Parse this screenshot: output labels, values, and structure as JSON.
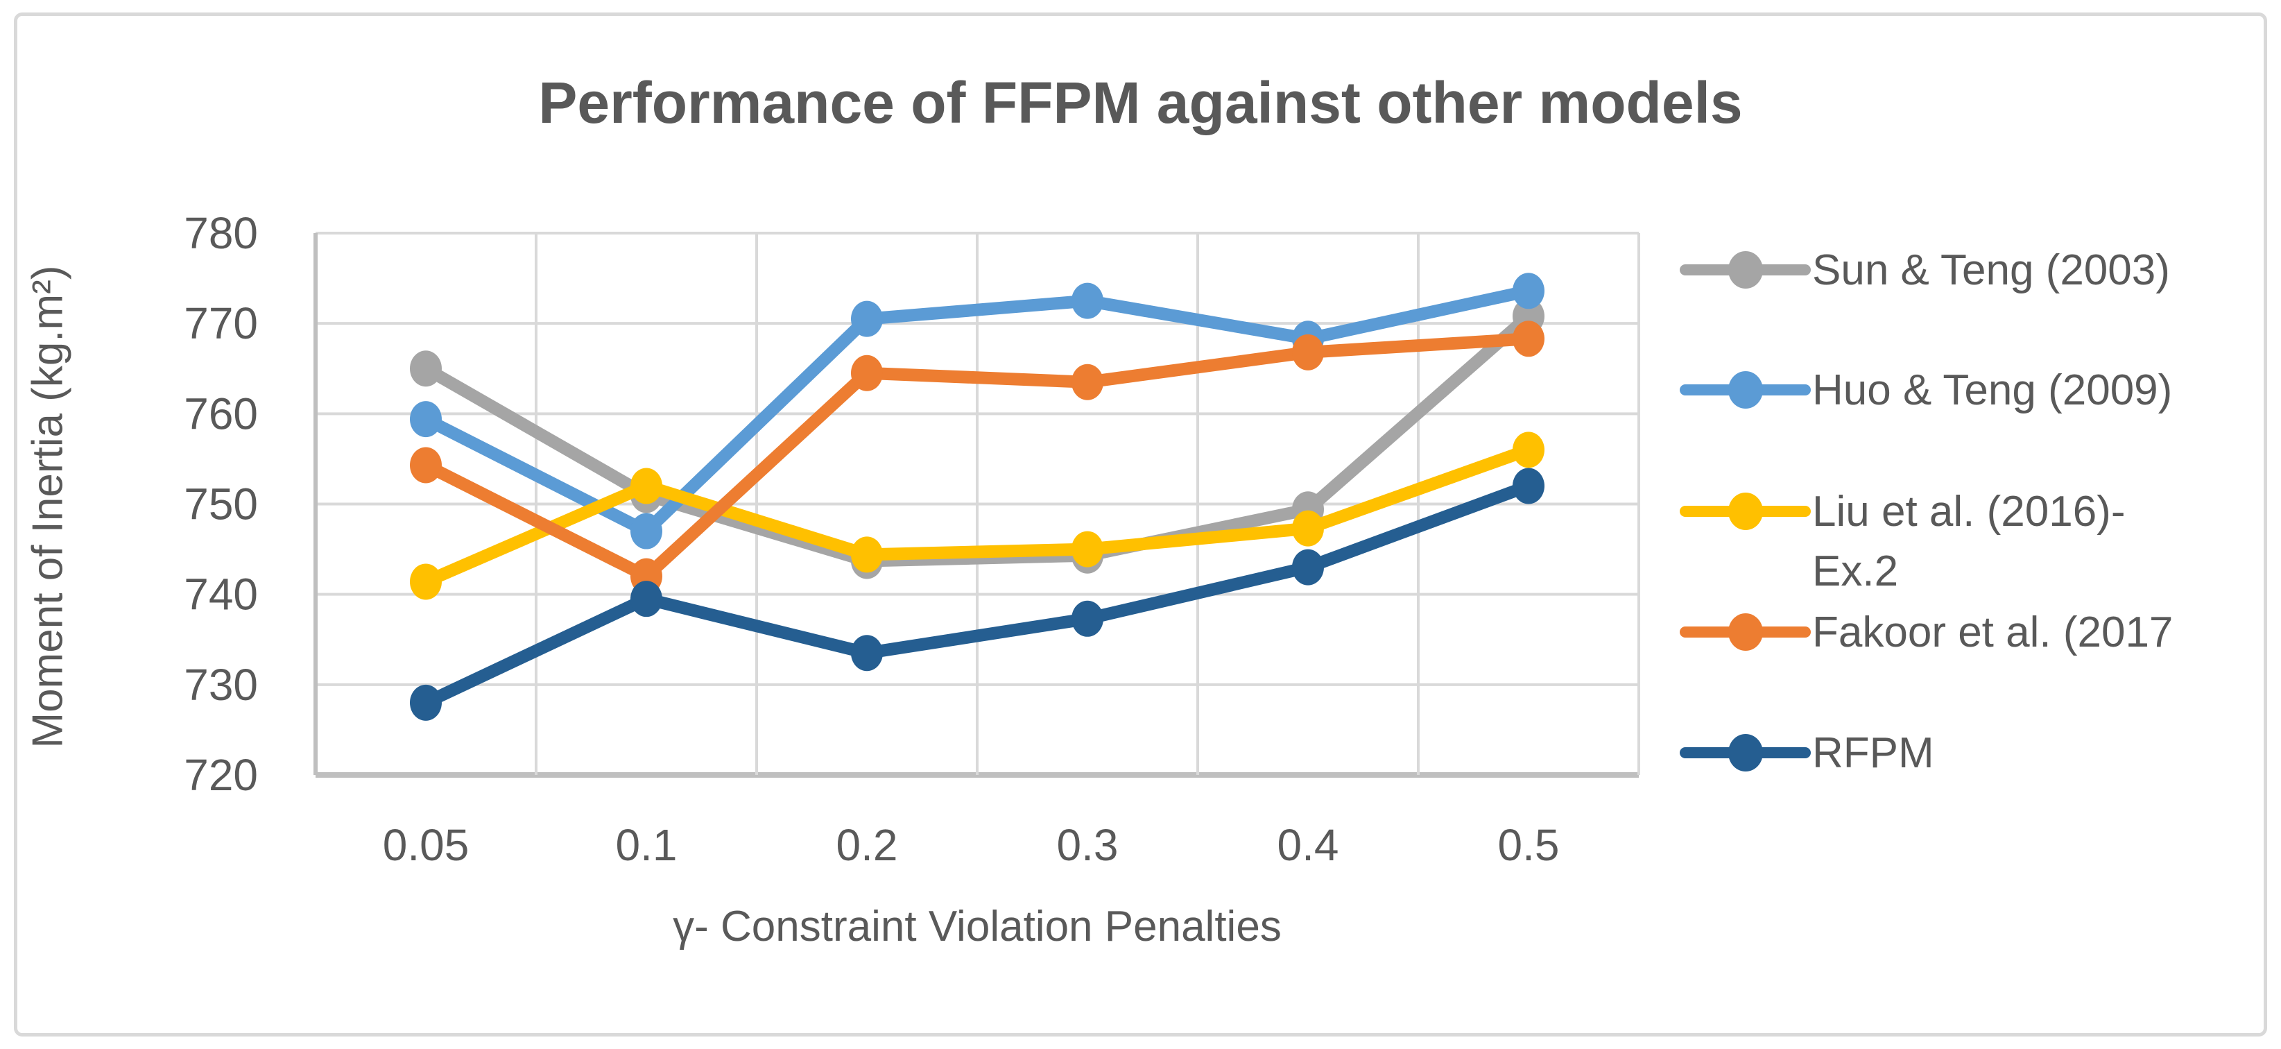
{
  "chart": {
    "title": "Performance of FFPM against other models",
    "y_axis_title": "Moment of Inertia (kg.m²)",
    "x_axis_title": "γ- Constraint Violation Penalties"
  },
  "colors": {
    "text": "#595959",
    "gridline": "#d9d9d9",
    "axis_line": "#bfbfbf",
    "background": "#ffffff",
    "series_gray": "#a5a5a5",
    "series_blue": "#5b9bd5",
    "series_yellow": "#ffc000",
    "series_orange": "#ed7d31",
    "series_dark_blue": "#255e91"
  },
  "legend": {
    "position": "right",
    "entries": [
      {
        "label": "Sun & Teng (2003)",
        "label_line2": "",
        "color": "#a5a5a5"
      },
      {
        "label": "Huo & Teng (2009)",
        "label_line2": "",
        "color": "#5b9bd5"
      },
      {
        "label": "Liu et al. (2016)-",
        "label_line2": "Ex.2",
        "color": "#ffc000"
      },
      {
        "label": "Fakoor et al. (2017",
        "label_line2": "",
        "color": "#ed7d31"
      },
      {
        "label": "RFPM",
        "label_line2": "",
        "color": "#255e91"
      }
    ]
  },
  "chart_data": {
    "type": "line",
    "title": "Performance of FFPM against other models",
    "xlabel": "γ- Constraint Violation Penalties",
    "ylabel": "Moment of Inertia (kg.m²)",
    "categories": [
      0.05,
      0.1,
      0.2,
      0.3,
      0.4,
      0.5
    ],
    "x_tick_labels": [
      "0.05",
      "0.1",
      "0.2",
      "0.3",
      "0.4",
      "0.5"
    ],
    "y_tick_labels": [
      "780",
      "770",
      "760",
      "750",
      "740",
      "730",
      "720"
    ],
    "ylim": [
      720,
      780
    ],
    "y_step": 10,
    "grid": true,
    "legend_position": "right",
    "series": [
      {
        "name": "Sun & Teng (2003)",
        "color": "#a5a5a5",
        "values": [
          765.0,
          751.0,
          743.7,
          744.3,
          749.4,
          770.8
        ]
      },
      {
        "name": "Huo & Teng (2009)",
        "color": "#5b9bd5",
        "values": [
          759.4,
          747.0,
          770.5,
          772.5,
          768.3,
          773.6
        ]
      },
      {
        "name": "Liu et al. (2016)-Ex.2",
        "color": "#ffc000",
        "values": [
          741.4,
          752.0,
          744.4,
          745.0,
          747.3,
          756.0
        ]
      },
      {
        "name": "Fakoor et al. (2017)",
        "color": "#ed7d31",
        "values": [
          754.3,
          742.0,
          764.5,
          763.5,
          766.8,
          768.3
        ]
      },
      {
        "name": "RFPM",
        "color": "#255e91",
        "values": [
          728.0,
          739.5,
          733.5,
          737.3,
          743.0,
          752.0
        ]
      }
    ]
  }
}
